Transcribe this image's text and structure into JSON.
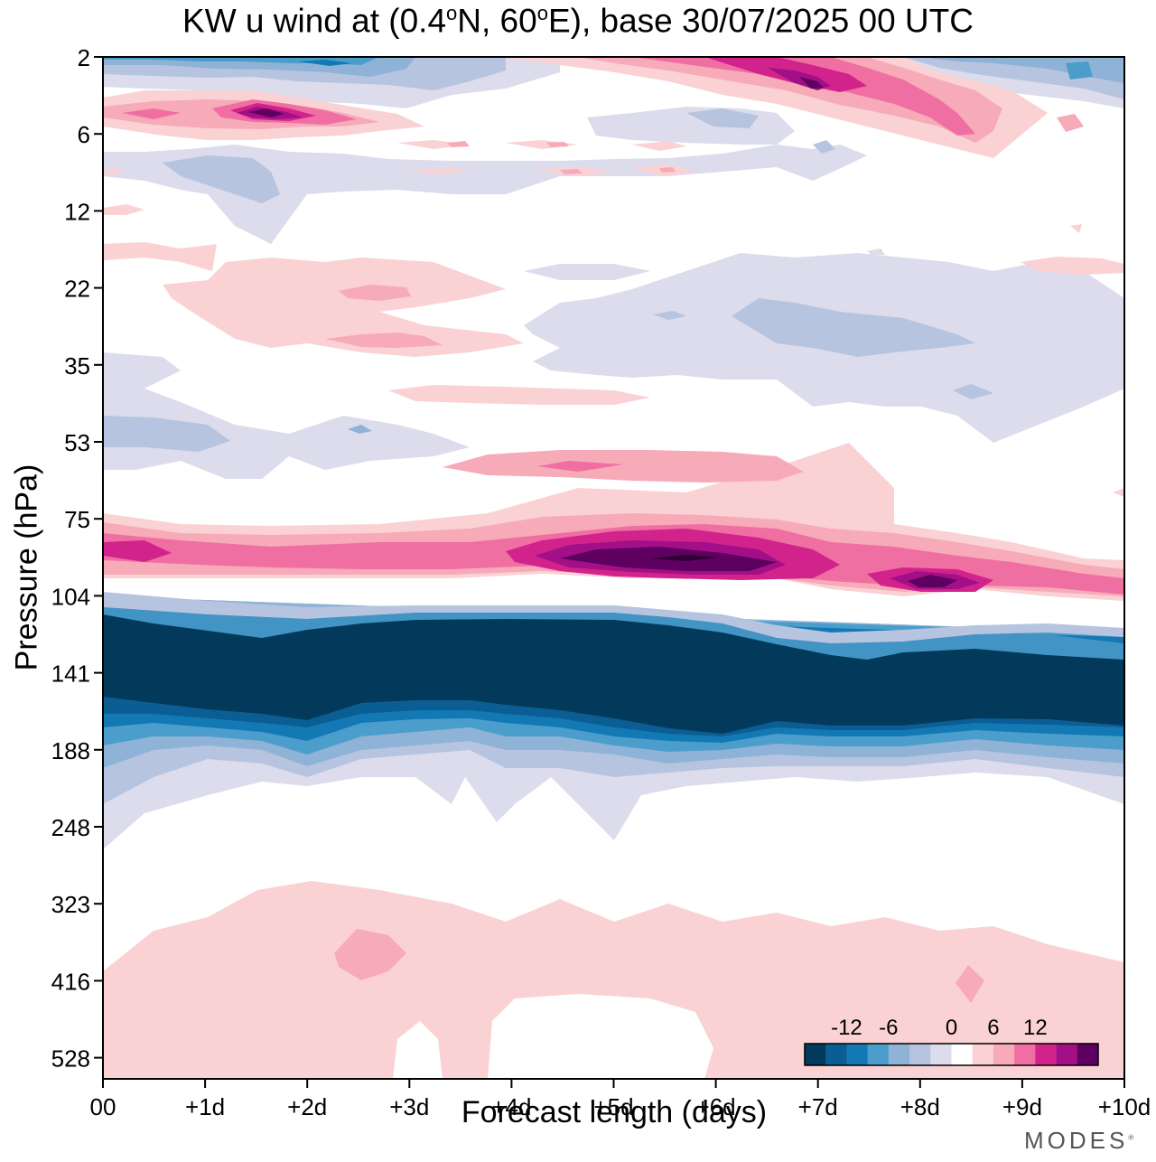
{
  "chart_data": {
    "type": "heatmap",
    "title": "KW u wind at (0.4°N, 60°E),  base 30/07/2025  00 UTC",
    "title_parts": [
      "KW u wind at (0.4",
      "o",
      "N, 60",
      "o",
      "E),  base 30/07/2025  00 UTC"
    ],
    "xlabel": "Forecast length (days)",
    "ylabel": "Pressure (hPa)",
    "x_ticks": [
      "00",
      "+1d",
      "+2d",
      "+3d",
      "+4d",
      "+5d",
      "+6d",
      "+7d",
      "+8d",
      "+9d",
      "+10d"
    ],
    "y_ticks": [
      "2",
      "6",
      "12",
      "22",
      "35",
      "53",
      "75",
      "104",
      "141",
      "188",
      "248",
      "323",
      "416",
      "528"
    ],
    "xlim_days": [
      0,
      10
    ],
    "colorbar": {
      "levels": [
        -15,
        -12,
        -9,
        -6,
        -3,
        -1.5,
        1.5,
        3,
        6,
        9,
        12,
        15
      ],
      "tick_labels": [
        "-12",
        "-6",
        "0",
        "6",
        "12"
      ],
      "colors": [
        "#033a5c",
        "#0b5e93",
        "#1279b5",
        "#4b9ecb",
        "#8eb3d6",
        "#b6c4df",
        "#dcdcec",
        "#ffffff",
        "#fad2d3",
        "#f7aab8",
        "#f06fa3",
        "#d2238c",
        "#a30f86",
        "#5e005f"
      ]
    },
    "features": [
      {
        "level_hPa": 3,
        "days": [
          0.2,
          3
        ],
        "u_min": -9
      },
      {
        "level_hPa": 3,
        "days": [
          5.5,
          7.2
        ],
        "u_max": 15
      },
      {
        "level_hPa": 5,
        "days": [
          1.2,
          2.2
        ],
        "u_max": 15
      },
      {
        "level_hPa": 90,
        "days": [
          4.2,
          6.8
        ],
        "u_max": 15
      },
      {
        "level_hPa": 97,
        "days": [
          8,
          8.6
        ],
        "u_max": 12
      },
      {
        "level_hPa": 141,
        "days": [
          0,
          10
        ],
        "u_min": -15
      },
      {
        "level_hPa": 380,
        "days": [
          2.5,
          3.0
        ],
        "u_max": 6
      }
    ]
  },
  "branding": {
    "logo": "MODES",
    "mark": "®"
  }
}
